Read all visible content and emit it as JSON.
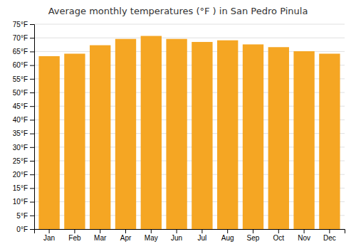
{
  "chart_data": {
    "type": "bar",
    "title": "Average monthly temperatures (°F ) in San Pedro Pinula",
    "categories": [
      "Jan",
      "Feb",
      "Mar",
      "Apr",
      "May",
      "Jun",
      "Jul",
      "Aug",
      "Sep",
      "Oct",
      "Nov",
      "Dec"
    ],
    "values": [
      63.3,
      64.2,
      67.3,
      69.6,
      70.7,
      69.6,
      68.5,
      69.1,
      67.6,
      66.6,
      65.1,
      64.2
    ],
    "color": "#F5A623",
    "ylim": [
      0,
      75
    ],
    "yticks": [
      {
        "value": 0,
        "label": "0°F"
      },
      {
        "value": 5,
        "label": "5°F"
      },
      {
        "value": 10,
        "label": "10°F"
      },
      {
        "value": 15,
        "label": "15°F"
      },
      {
        "value": 20,
        "label": "20°F"
      },
      {
        "value": 25,
        "label": "25°F"
      },
      {
        "value": 30,
        "label": "30°F"
      },
      {
        "value": 35,
        "label": "35°F"
      },
      {
        "value": 40,
        "label": "40°F"
      },
      {
        "value": 45,
        "label": "45°F"
      },
      {
        "value": 50,
        "label": "50°F"
      },
      {
        "value": 55,
        "label": "55°F"
      },
      {
        "value": 60,
        "label": "60°F"
      },
      {
        "value": 65,
        "label": "65°F"
      },
      {
        "value": 70,
        "label": "70°F"
      },
      {
        "value": 75,
        "label": "75°F"
      }
    ],
    "grid": true
  }
}
